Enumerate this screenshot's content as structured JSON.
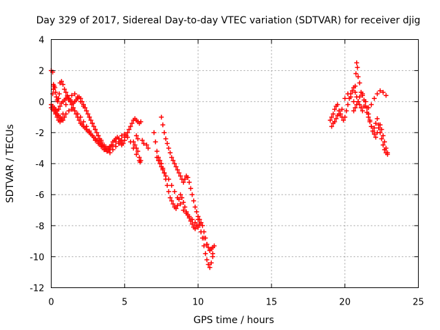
{
  "chart_data": {
    "type": "scatter",
    "title": "Day 329 of 2017, Sidereal Day-to-day VTEC variation (SDTVAR) for receiver djig",
    "xlabel": "GPS time / hours",
    "ylabel": "SDTVAR / TECUs",
    "xlim": [
      0,
      25
    ],
    "ylim": [
      -12,
      4
    ],
    "xticks": [
      0,
      5,
      10,
      15,
      20,
      25
    ],
    "xtick_labels": [
      "0",
      "5",
      "10",
      "15",
      "20",
      "25"
    ],
    "yticks": [
      -12,
      -10,
      -8,
      -6,
      -4,
      -2,
      0,
      2,
      4
    ],
    "ytick_labels": [
      "-12",
      "-10",
      "-8",
      "-6",
      "-4",
      "-2",
      "0",
      "2",
      "4"
    ],
    "grid": true,
    "marker": "+",
    "color": "#ff0000",
    "series": [
      {
        "name": "SDTVAR",
        "x": [
          0.0,
          0.1,
          0.15,
          0.2,
          0.25,
          0.3,
          0.35,
          0.4,
          0.45,
          0.5,
          0.55,
          0.6,
          0.7,
          0.8,
          0.9,
          1.0,
          1.1,
          1.2,
          1.3,
          1.4,
          1.5,
          1.6,
          1.7,
          1.8,
          1.9,
          2.0,
          2.1,
          2.2,
          2.3,
          2.4,
          2.5,
          2.6,
          2.7,
          2.8,
          2.9,
          3.0,
          3.1,
          3.2,
          3.3,
          3.4,
          3.5,
          3.6,
          3.7,
          3.8,
          3.9,
          4.0,
          4.1,
          4.2,
          4.3,
          4.4,
          4.5,
          4.6,
          4.7,
          4.8,
          4.9,
          5.0,
          5.1,
          5.2,
          5.3,
          5.4,
          5.5,
          5.6,
          5.7,
          5.8,
          5.9,
          6.0,
          6.1,
          0.0,
          0.1,
          0.2,
          0.3,
          0.4,
          0.5,
          0.6,
          0.7,
          0.8,
          0.9,
          1.0,
          1.1,
          1.2,
          1.3,
          1.4,
          1.5,
          1.6,
          1.7,
          1.8,
          1.9,
          2.0,
          2.1,
          2.2,
          2.3,
          2.4,
          2.5,
          2.6,
          2.7,
          2.8,
          2.9,
          3.0,
          3.1,
          3.2,
          3.3,
          3.4,
          3.5,
          3.6,
          3.7,
          3.8,
          3.9,
          4.0,
          4.2,
          4.4,
          4.6,
          4.8,
          5.0,
          5.2,
          5.4,
          5.6,
          5.8,
          6.0,
          0.0,
          0.1,
          0.2,
          0.3,
          0.4,
          0.5,
          0.6,
          0.7,
          0.8,
          0.9,
          1.0,
          1.2,
          1.4,
          1.6,
          1.8,
          2.0,
          2.2,
          2.4,
          2.6,
          2.8,
          3.0,
          3.2,
          3.4,
          3.6,
          3.8,
          4.0,
          4.2,
          4.4,
          4.6,
          4.8,
          5.0,
          0.1,
          0.15,
          0.2,
          0.3,
          0.4,
          0.5,
          0.6,
          0.7,
          0.8,
          1.0,
          1.2,
          1.4,
          1.6,
          1.8,
          2.0,
          2.2,
          2.4,
          2.6,
          2.8,
          3.0,
          3.2,
          3.4,
          3.6,
          3.8,
          4.0,
          5.6,
          5.7,
          5.8,
          5.9,
          6.0,
          6.05,
          6.1,
          5.9,
          5.8,
          6.2,
          6.3,
          6.5,
          6.6,
          7.0,
          7.1,
          7.2,
          7.3,
          7.4,
          7.5,
          7.6,
          7.7,
          7.8,
          7.9,
          8.0,
          8.1,
          8.2,
          8.3,
          8.4,
          8.5,
          8.6,
          8.7,
          8.8,
          8.9,
          9.0,
          9.1,
          9.2,
          9.3,
          9.4,
          9.5,
          9.6,
          9.7,
          9.8,
          9.9,
          10.0,
          10.1,
          10.2,
          10.3,
          10.4,
          10.5,
          10.6,
          10.7,
          10.8,
          10.9,
          11.0,
          7.5,
          7.6,
          7.7,
          7.8,
          7.9,
          8.0,
          8.1,
          8.2,
          8.3,
          8.4,
          8.5,
          8.6,
          8.7,
          8.8,
          8.9,
          9.0,
          9.1,
          9.2,
          9.3,
          9.4,
          9.5,
          9.6,
          9.7,
          9.8,
          9.9,
          10.0,
          10.1,
          10.2,
          10.3,
          10.4,
          10.5,
          10.6,
          10.7,
          10.8,
          10.9,
          11.0,
          11.1,
          7.2,
          7.3,
          7.4,
          7.5,
          7.6,
          7.7,
          7.8,
          8.0,
          8.2,
          8.4,
          8.6,
          8.8,
          9.0,
          9.2,
          9.4,
          9.6,
          9.8,
          10.0,
          10.2,
          10.4,
          10.6,
          10.8,
          11.0,
          19.0,
          19.1,
          19.2,
          19.3,
          19.4,
          19.5,
          19.6,
          19.7,
          19.8,
          19.9,
          20.0,
          20.1,
          20.2,
          20.3,
          20.4,
          20.5,
          20.6,
          20.7,
          20.8,
          20.9,
          21.0,
          21.1,
          21.2,
          21.3,
          21.4,
          21.5,
          21.6,
          21.7,
          21.8,
          21.9,
          22.0,
          22.1,
          22.2,
          22.3,
          22.4,
          22.5,
          22.6,
          22.7,
          22.8,
          22.9,
          19.1,
          19.2,
          19.3,
          19.4,
          19.5,
          19.6,
          19.8,
          20.0,
          20.2,
          20.4,
          20.6,
          20.7,
          20.75,
          20.8,
          20.85,
          20.9,
          21.0,
          21.2,
          21.4,
          21.6,
          21.8,
          22.0,
          22.2,
          22.4,
          22.6,
          22.8,
          20.6,
          20.7,
          20.8,
          20.9,
          21.0,
          21.1,
          21.2,
          21.3,
          21.4,
          21.5,
          21.6,
          21.7,
          21.8,
          21.9,
          22.0,
          22.1,
          22.2,
          22.3,
          22.4,
          22.5,
          22.6,
          22.7,
          22.8,
          22.9
        ],
        "y": [
          2.0,
          1.9,
          1.1,
          1.0,
          0.9,
          0.6,
          0.3,
          0.1,
          0.0,
          0.2,
          0.5,
          1.2,
          1.3,
          1.1,
          0.8,
          0.6,
          0.4,
          0.2,
          0.1,
          0.0,
          -0.1,
          0.0,
          0.1,
          0.2,
          0.3,
          0.2,
          0.0,
          -0.2,
          -0.4,
          -0.6,
          -0.8,
          -1.0,
          -1.2,
          -1.4,
          -1.6,
          -1.8,
          -2.0,
          -2.2,
          -2.4,
          -2.6,
          -2.8,
          -2.9,
          -3.0,
          -3.1,
          -3.0,
          -2.9,
          -2.8,
          -2.6,
          -2.5,
          -2.4,
          -2.3,
          -2.4,
          -2.6,
          -2.8,
          -2.7,
          -2.5,
          -2.2,
          -2.0,
          -1.8,
          -1.6,
          -1.4,
          -1.2,
          -1.1,
          -1.2,
          -1.3,
          -1.4,
          -1.3,
          -0.2,
          -0.3,
          -0.4,
          -0.5,
          -0.6,
          -0.5,
          -0.3,
          -0.1,
          0.0,
          0.1,
          0.2,
          0.3,
          0.2,
          0.0,
          -0.2,
          -0.4,
          -0.6,
          -0.8,
          -1.0,
          -1.2,
          -1.4,
          -1.5,
          -1.6,
          -1.7,
          -1.8,
          -1.9,
          -2.0,
          -2.1,
          -2.2,
          -2.3,
          -2.4,
          -2.5,
          -2.6,
          -2.7,
          -2.8,
          -2.9,
          -3.0,
          -3.1,
          -3.2,
          -3.1,
          -3.0,
          -2.8,
          -2.6,
          -2.4,
          -2.2,
          -2.1,
          -2.3,
          -2.6,
          -3.0,
          -3.4,
          -3.8,
          -0.4,
          -0.5,
          -0.6,
          -0.7,
          -0.8,
          -0.9,
          -1.0,
          -1.1,
          -1.2,
          -1.0,
          -0.8,
          -0.6,
          -0.5,
          -0.6,
          -0.8,
          -1.0,
          -1.3,
          -1.6,
          -1.9,
          -2.2,
          -2.5,
          -2.7,
          -2.9,
          -3.1,
          -3.2,
          -3.3,
          -3.1,
          -2.9,
          -2.7,
          -2.5,
          -2.3,
          0.5,
          0.8,
          -0.6,
          -0.8,
          -1.0,
          -1.2,
          -1.3,
          -1.2,
          -0.8,
          -0.2,
          0.1,
          0.4,
          0.5,
          0.3,
          0.0,
          -0.3,
          -0.6,
          -1.0,
          -1.4,
          -1.8,
          -2.2,
          -2.5,
          -2.8,
          -3.0,
          -3.1,
          -2.6,
          -2.8,
          -3.0,
          -3.2,
          -3.6,
          -3.9,
          -3.8,
          -2.4,
          -2.2,
          -2.5,
          -2.7,
          -2.8,
          -3.0,
          -2.0,
          -2.6,
          -3.2,
          -3.6,
          -3.8,
          -4.0,
          -4.3,
          -4.6,
          -5.0,
          -5.4,
          -5.8,
          -6.2,
          -6.4,
          -6.6,
          -6.8,
          -6.9,
          -6.7,
          -6.3,
          -6.0,
          -6.2,
          -6.5,
          -6.8,
          -7.1,
          -7.3,
          -7.5,
          -7.7,
          -7.9,
          -8.1,
          -8.2,
          -8.0,
          -7.6,
          -7.9,
          -8.4,
          -8.8,
          -9.3,
          -9.8,
          -10.2,
          -10.5,
          -10.7,
          -10.4,
          -9.8,
          -1.0,
          -1.5,
          -2.0,
          -2.4,
          -2.7,
          -3.0,
          -3.3,
          -3.6,
          -3.8,
          -4.0,
          -4.2,
          -4.4,
          -4.6,
          -4.8,
          -5.0,
          -5.2,
          -5.0,
          -4.8,
          -4.9,
          -5.2,
          -5.6,
          -6.0,
          -6.4,
          -6.8,
          -7.1,
          -7.4,
          -7.6,
          -7.8,
          -8.0,
          -8.4,
          -8.8,
          -9.2,
          -9.4,
          -9.6,
          -9.5,
          -9.4,
          -9.3,
          -3.6,
          -3.8,
          -4.0,
          -4.2,
          -4.4,
          -4.6,
          -4.8,
          -5.0,
          -5.4,
          -5.8,
          -6.2,
          -6.6,
          -7.0,
          -7.2,
          -7.4,
          -7.6,
          -7.8,
          -8.1,
          -8.4,
          -8.8,
          -9.2,
          -9.6,
          -10.0,
          -1.2,
          -1.0,
          -0.8,
          -0.5,
          -0.3,
          -0.2,
          -0.6,
          -0.8,
          -1.0,
          -1.2,
          -1.0,
          -0.6,
          -0.2,
          0.2,
          0.5,
          0.7,
          0.9,
          0.6,
          0.3,
          0.0,
          -0.2,
          -0.4,
          -0.6,
          -0.3,
          0.0,
          -0.4,
          -0.8,
          -1.2,
          -1.6,
          -1.9,
          -1.7,
          -1.4,
          -1.1,
          -1.5,
          -2.0,
          -2.4,
          -2.8,
          -3.1,
          -3.3,
          -3.4,
          -1.6,
          -1.4,
          -1.3,
          -1.1,
          -0.9,
          -0.8,
          -0.5,
          0.2,
          0.5,
          0.3,
          0.0,
          1.0,
          1.8,
          2.5,
          2.2,
          1.6,
          1.2,
          0.5,
          0.0,
          -0.4,
          -0.2,
          0.2,
          0.5,
          0.7,
          0.6,
          0.4,
          -0.6,
          -0.4,
          -0.2,
          0.0,
          0.3,
          0.6,
          0.4,
          0.1,
          -0.3,
          -0.7,
          -1.0,
          -1.3,
          -1.6,
          -1.9,
          -2.1,
          -2.3,
          -2.0,
          -1.7,
          -1.5,
          -1.8,
          -2.2,
          -2.6,
          -3.0,
          -3.3
        ]
      }
    ]
  }
}
